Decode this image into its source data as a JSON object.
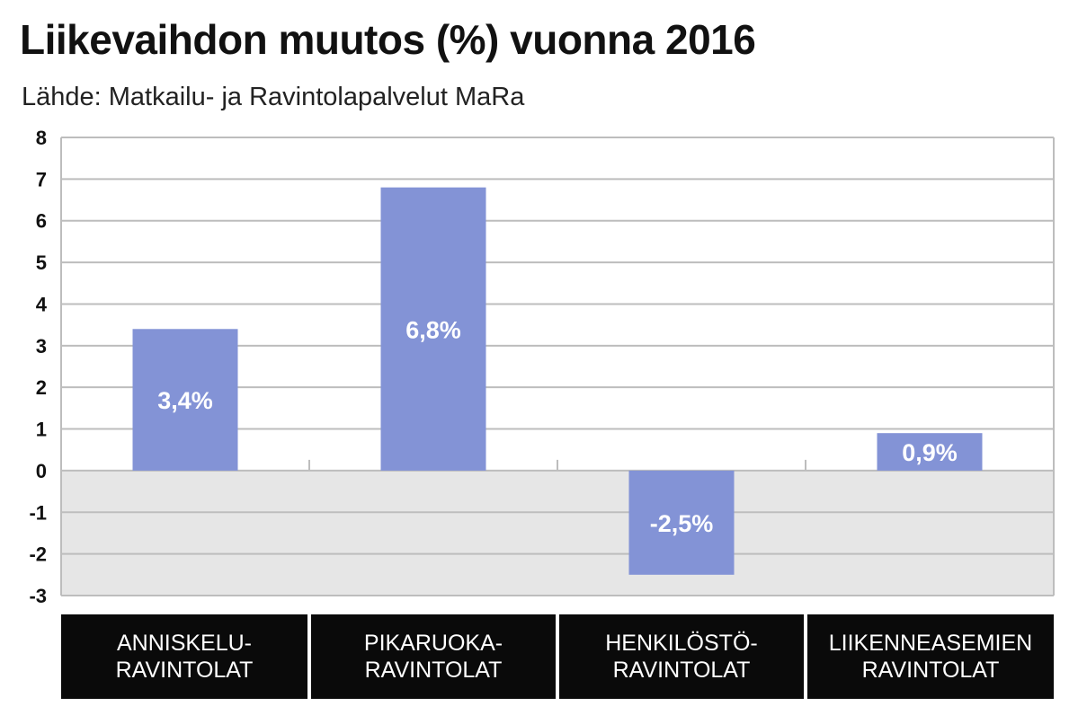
{
  "title": "Liikevaihdon muutos (%) vuonna 2016",
  "subtitle": "Lähde: Matkailu- ja Ravintolapalvelut MaRa",
  "colors": {
    "bar": "#8393d6",
    "negative_bg": "#e6e6e6",
    "grid": "#bdbdbd",
    "category_bg": "#0a0a0a"
  },
  "chart_data": {
    "type": "bar",
    "categories": [
      "ANNISKELU-\nRAVINTOLAT",
      "PIKARUOKA-\nRAVINTOLAT",
      "HENKILÖSTÖ-\nRAVINTOLAT",
      "LIIKENNEASEMIEN\nRAVINTOLAT"
    ],
    "values": [
      3.4,
      6.8,
      -2.5,
      0.9
    ],
    "data_labels": [
      "3,4%",
      "6,8%",
      "-2,5%",
      "0,9%"
    ],
    "ylim": [
      -3,
      8
    ],
    "yticks": [
      "8",
      "7",
      "6",
      "5",
      "4",
      "3",
      "2",
      "1",
      "0",
      "-1",
      "-2",
      "-3"
    ],
    "grid": true
  }
}
